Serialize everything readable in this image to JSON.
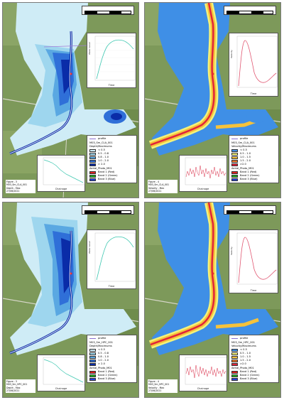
{
  "panels": [
    {
      "title": "M03_Sm_CLA_001",
      "variable": "Depth/Maximums",
      "figure_no": "Figure - 3",
      "figure_desc": "Depth - Max",
      "date": "27/06/2021",
      "top_chart_ylabel": "Water Level",
      "top_chart_xlabel": "Time",
      "top_chart_yticks": [
        "43.0",
        "42.8",
        "42.6",
        "42.4",
        "42.2",
        "42.0",
        "41.8"
      ],
      "top_chart_xticks": [
        "0.5",
        "1.0",
        "1.5"
      ],
      "bottom_chart_ylabel": "Water Level",
      "bottom_chart_xlabel": "Chainage",
      "bottom_chart_xticks": [
        "0",
        "2000",
        "4000",
        "6000",
        "8000",
        "10000",
        "12000"
      ],
      "legend": [
        {
          "label": "< 0.5",
          "color": "#cfecf6"
        },
        {
          "label": "0.5 - 0.8",
          "color": "#9ed6ee"
        },
        {
          "label": "0.8 - 1.0",
          "color": "#5aa8e2"
        },
        {
          "label": "1.0 - 2.0",
          "color": "#2f6fd8"
        },
        {
          "label": "> 2.0",
          "color": "#0a2ca8"
        }
      ]
    },
    {
      "title": "M03_Sm_CLA_001",
      "variable": "Velocity/Maximums",
      "figure_no": "Figure - 4",
      "figure_desc": "Velocity - Max",
      "date": "27/06/2021",
      "top_chart_ylabel": "Velocity",
      "top_chart_xlabel": "Time",
      "top_chart_yticks": [
        "1.2",
        "1.0",
        "0.8",
        "0.6",
        "0.4",
        "0.2"
      ],
      "top_chart_xticks": [
        "0.5",
        "1.0",
        "1.5"
      ],
      "bottom_chart_ylabel": "Velocity",
      "bottom_chart_xlabel": "Chainage",
      "bottom_chart_xticks": [
        "0",
        "2000",
        "4000",
        "6000",
        "8000",
        "10000",
        "12000"
      ],
      "legend": [
        {
          "label": "< 0.5",
          "color": "#3f8fe6"
        },
        {
          "label": "0.5 - 1.0",
          "color": "#f4f27a"
        },
        {
          "label": "1.0 - 1.5",
          "color": "#f6c23a"
        },
        {
          "label": "1.5 - 2.0",
          "color": "#ef7a2a"
        },
        {
          "label": ">2.0",
          "color": "#e0243a"
        }
      ]
    },
    {
      "title": "M03_Sm_HPC_001",
      "variable": "Depth/Maximums",
      "figure_no": "Figure - 3",
      "figure_desc": "Depth - Max",
      "date": "27/06/2021",
      "top_chart_ylabel": "Water Level",
      "top_chart_xlabel": "Time",
      "top_chart_yticks": [
        "43.0",
        "42.8",
        "42.6",
        "42.4",
        "42.2",
        "42.0",
        "41.8"
      ],
      "top_chart_xticks": [
        "0.5",
        "1.0",
        "1.5"
      ],
      "bottom_chart_ylabel": "Water Level",
      "bottom_chart_xlabel": "Chainage",
      "bottom_chart_xticks": [
        "0",
        "2000",
        "4000",
        "6000",
        "8000",
        "10000",
        "12000"
      ],
      "legend": [
        {
          "label": "< 0.5",
          "color": "#cfecf6"
        },
        {
          "label": "0.5 - 0.8",
          "color": "#9ed6ee"
        },
        {
          "label": "0.8 - 1.0",
          "color": "#5aa8e2"
        },
        {
          "label": "1.0 - 2.0",
          "color": "#2f6fd8"
        },
        {
          "label": "> 2.0",
          "color": "#0a2ca8"
        }
      ]
    },
    {
      "title": "M03_Sm_HPC_001",
      "variable": "Velocity/Maximums",
      "figure_no": "Figure - 4",
      "figure_desc": "Velocity - Max",
      "date": "27/06/2021",
      "top_chart_ylabel": "Velocity",
      "top_chart_xlabel": "Time",
      "top_chart_yticks": [
        "1.2",
        "1.0",
        "0.8",
        "0.6",
        "0.4",
        "0.2"
      ],
      "top_chart_xticks": [
        "0.5",
        "1.0",
        "1.5"
      ],
      "bottom_chart_ylabel": "Velocity",
      "bottom_chart_xlabel": "Chainage",
      "bottom_chart_xticks": [
        "0",
        "2000",
        "4000",
        "6000",
        "8000",
        "10000",
        "12000"
      ],
      "legend": [
        {
          "label": "< 0.5",
          "color": "#3f8fe6"
        },
        {
          "label": "0.5 - 1.0",
          "color": "#f4f27a"
        },
        {
          "label": "1.0 - 1.5",
          "color": "#f6c23a"
        },
        {
          "label": "1.5 - 2.0",
          "color": "#ef7a2a"
        },
        {
          "label": ">2.0",
          "color": "#e0243a"
        }
      ]
    }
  ],
  "common": {
    "profile_label": "profile",
    "basemap_title": "Aerial_Photo_M01",
    "bands": [
      {
        "label": "Band 1 (Red)",
        "color": "#e02020"
      },
      {
        "label": "Band 2 (Green)",
        "color": "#22b022"
      },
      {
        "label": "Band 3 (Blue)",
        "color": "#2040e0"
      }
    ],
    "scale_labels": [
      "0",
      "100",
      "200",
      "300",
      "400"
    ]
  }
}
